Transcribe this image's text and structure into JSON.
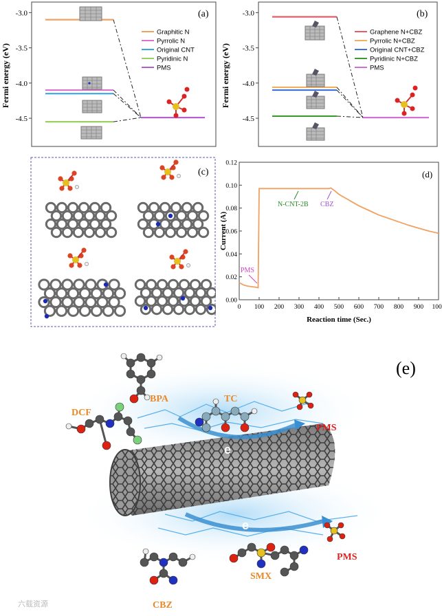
{
  "panel_a": {
    "label": "(a)",
    "ylabel": "Fermi energy (eV)",
    "ticks": [
      "-3.0",
      "-3.5",
      "-4.0",
      "-4.5"
    ],
    "legend": [
      "Graphitic N",
      "Pyrrolic N",
      "Original CNT",
      "Pyridinic N",
      "PMS"
    ]
  },
  "panel_b": {
    "label": "(b)",
    "ylabel": "Fermi energy (eV)",
    "ticks": [
      "-3.0",
      "-3.5",
      "-4.0",
      "-4.5"
    ],
    "legend": [
      "Graphene N+CBZ",
      "Pyrrolic N+CBZ",
      "Original CNT+CBZ",
      "Pyridinic N+CBZ",
      "PMS"
    ]
  },
  "panel_c": {
    "label": "(c)"
  },
  "panel_d": {
    "label": "(d)",
    "ylabel": "Current (A)",
    "xlabel": "Reaction time (Sec.)",
    "yticks": [
      "0.00",
      "0.02",
      "0.04",
      "0.06",
      "0.08",
      "0.10",
      "0.12"
    ],
    "xticks": [
      "0",
      "100",
      "200",
      "300",
      "400",
      "500",
      "600",
      "700",
      "800",
      "900",
      "1000"
    ],
    "annotations": {
      "pms": "PMS",
      "ncnt": "N-CNT-2B",
      "cbz": "CBZ"
    }
  },
  "panel_e": {
    "label": "(e)",
    "molecules": {
      "dcf": "DCF",
      "bpa": "BPA",
      "tc": "TC",
      "pms_top": "PMS",
      "pms_bottom": "PMS",
      "smx": "SMX",
      "cbz": "CBZ"
    },
    "electron_top": "e",
    "electron_bottom": "e",
    "watermark": "六载资源"
  },
  "chart_data": [
    {
      "type": "line",
      "title": "",
      "ylabel": "Fermi energy (eV)",
      "ylim": [
        -4.9,
        -2.85
      ],
      "series": [
        {
          "name": "Graphitic N",
          "values": [
            -3.1
          ],
          "color": "#f0a060"
        },
        {
          "name": "Pyrrolic N",
          "values": [
            -4.1
          ],
          "color": "#e070d0"
        },
        {
          "name": "Original CNT",
          "values": [
            -4.15
          ],
          "color": "#3aa8e0"
        },
        {
          "name": "Pyridinic N",
          "values": [
            -4.55
          ],
          "color": "#9ad060"
        },
        {
          "name": "PMS",
          "values": [
            -4.49
          ],
          "color": "#b060d0"
        }
      ]
    },
    {
      "type": "line",
      "title": "",
      "ylabel": "Fermi energy (eV)",
      "ylim": [
        -4.9,
        -2.85
      ],
      "series": [
        {
          "name": "Graphene N+CBZ",
          "values": [
            -3.06
          ],
          "color": "#e85a6a"
        },
        {
          "name": "Pyrrolic N+CBZ",
          "values": [
            -4.06
          ],
          "color": "#f0b060"
        },
        {
          "name": "Original CNT+CBZ",
          "values": [
            -4.1
          ],
          "color": "#4070e0"
        },
        {
          "name": "Pyridinic N+CBZ",
          "values": [
            -4.47
          ],
          "color": "#3a9a30"
        },
        {
          "name": "PMS",
          "values": [
            -4.49
          ],
          "color": "#d070d0"
        }
      ]
    },
    {
      "type": "line",
      "title": "",
      "xlabel": "Reaction time (Sec.)",
      "ylabel": "Current (A)",
      "xlim": [
        0,
        1000
      ],
      "ylim": [
        0,
        0.12
      ],
      "series": [
        {
          "name": "",
          "color": "#f0a060",
          "x": [
            0,
            20,
            40,
            60,
            80,
            95,
            100,
            120,
            200,
            300,
            400,
            450,
            460,
            480,
            500,
            550,
            600,
            650,
            700,
            750,
            800,
            850,
            900,
            950,
            1000
          ],
          "values": [
            0.015,
            0.013,
            0.012,
            0.0115,
            0.011,
            0.0105,
            0.097,
            0.097,
            0.097,
            0.097,
            0.097,
            0.097,
            0.0975,
            0.095,
            0.092,
            0.087,
            0.082,
            0.078,
            0.074,
            0.071,
            0.068,
            0.065,
            0.0625,
            0.06,
            0.058
          ]
        }
      ]
    }
  ]
}
